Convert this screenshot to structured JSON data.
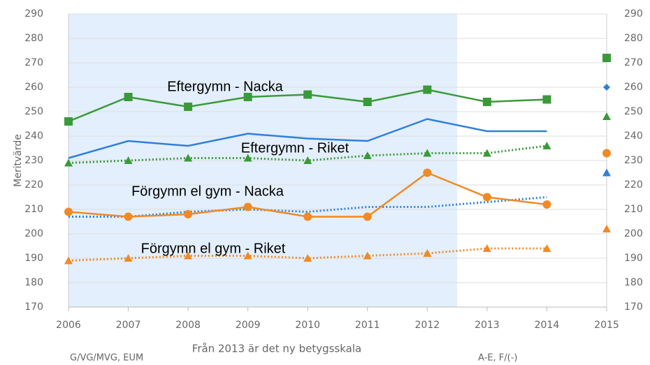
{
  "chart_data": {
    "type": "line",
    "y_label": "Meritvärde",
    "x_label": "Från 2013 är det ny betygsskala",
    "notes": [
      "G/VG/MVG, EUM",
      "A-E, F/(-)"
    ],
    "x": [
      2006,
      2007,
      2008,
      2009,
      2010,
      2011,
      2012,
      2013,
      2014
    ],
    "xlim": [
      2006,
      2015
    ],
    "xticks": [
      2006,
      2007,
      2008,
      2009,
      2010,
      2011,
      2012,
      2013,
      2014,
      2015
    ],
    "ylim": [
      170,
      290
    ],
    "yticks": [
      170,
      180,
      190,
      200,
      210,
      220,
      230,
      240,
      250,
      260,
      270,
      280,
      290
    ],
    "y2lim": [
      170,
      290
    ],
    "y2ticks": [
      170,
      180,
      190,
      200,
      210,
      220,
      230,
      240,
      250,
      260,
      270,
      280,
      290
    ],
    "grid": true,
    "shade_until": 2012.5,
    "shade_color": "#e3effc",
    "series": [
      {
        "name": "Eftergymn - Nacka",
        "color": "#3a9a3a",
        "dash": false,
        "marker": "square",
        "values": [
          246,
          256,
          252,
          256,
          257,
          254,
          259,
          254,
          255
        ],
        "end_value": 272,
        "end_marker": "square"
      },
      {
        "color": "#2f80d8",
        "dash": false,
        "marker": "none",
        "values": [
          231,
          238,
          236,
          241,
          239,
          238,
          247,
          242,
          242
        ],
        "end_value": 260,
        "end_marker": "diamond"
      },
      {
        "name": "Eftergymn - Riket",
        "color": "#3a9a3a",
        "dash": true,
        "marker": "triangle",
        "values": [
          229,
          230,
          231,
          231,
          230,
          232,
          233,
          233,
          236
        ],
        "end_value": 248,
        "end_marker": "triangle"
      },
      {
        "color": "#2f80d8",
        "dash": true,
        "marker": "none",
        "values": [
          207,
          207,
          209,
          210,
          209,
          211,
          211,
          213,
          215
        ],
        "end_value": 225,
        "end_marker": "triangle"
      },
      {
        "name": "Förgymn el gym - Nacka",
        "color": "#f08a24",
        "dash": false,
        "marker": "circle",
        "values": [
          209,
          207,
          208,
          211,
          207,
          207,
          225,
          215,
          212
        ],
        "end_value": 233,
        "end_marker": "circle"
      },
      {
        "name": "Förgymn el gym - Riket",
        "color": "#f08a24",
        "dash": true,
        "marker": "triangle",
        "values": [
          189,
          190,
          191,
          191,
          190,
          191,
          192,
          194,
          194
        ],
        "end_value": 202,
        "end_marker": "triangle"
      }
    ]
  }
}
